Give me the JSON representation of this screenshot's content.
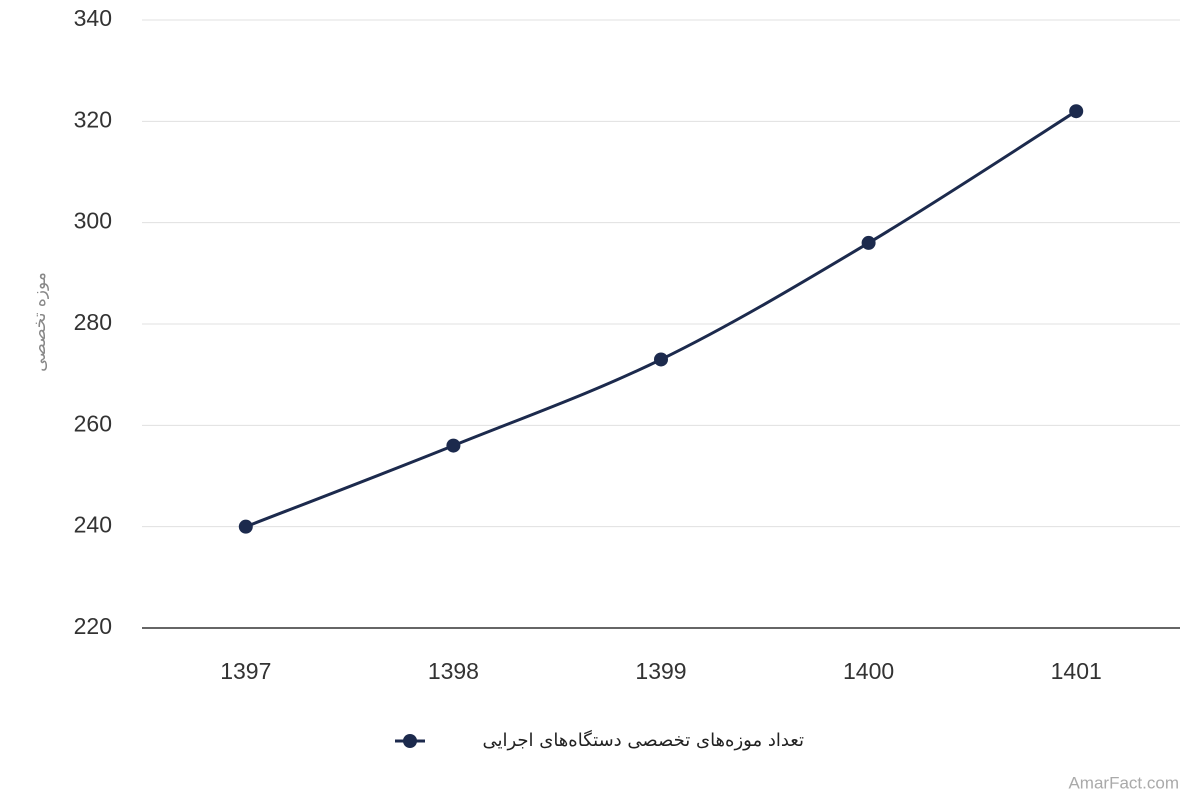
{
  "chart_data": {
    "type": "line",
    "y_label": "موزه تخصصی",
    "categories": [
      "1397",
      "1398",
      "1399",
      "1400",
      "1401"
    ],
    "series": [
      {
        "name": "تعداد موزه‌های تخصصی دستگاه‌های اجرایی",
        "color": "#1c2a4d",
        "values": [
          240,
          256,
          273,
          296,
          322
        ]
      }
    ],
    "ylim": [
      220,
      340
    ],
    "yticks": [
      220,
      240,
      260,
      280,
      300,
      320,
      340
    ],
    "grid": true,
    "credit": "AmarFact.com"
  }
}
